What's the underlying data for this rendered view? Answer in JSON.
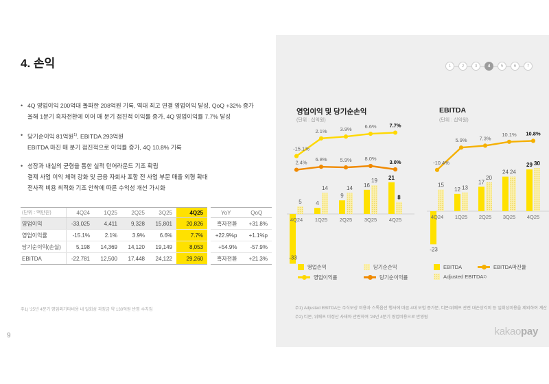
{
  "title": "4. 손익",
  "page_number": "9",
  "bullets": [
    {
      "lines": [
        {
          "text": "4Q 영업이익 200억대 돌파한 208억원 기록, 역대 최고 연결 영업이익 달성, QoQ +32% 증가"
        },
        {
          "text": "올해 1분기 흑자전환에 이어 매 분기 점진적 이익률 증가, 4Q 영업이익률 7.7% 달성"
        }
      ]
    },
    {
      "lines": [
        {
          "prefix": "당기순이익 81억원",
          "sup": "1)",
          "suffix": ", EBITDA 293억원"
        },
        {
          "text": "EBITDA 마진 매 분기 점진적으로 이익률 증가, 4Q 10.8% 기록"
        }
      ]
    },
    {
      "lines": [
        {
          "text": "성장과 내실의 균형을 통한 실적 턴어라운드 기조 확립"
        },
        {
          "text": "결제 사업 이익 체력 강화 및 금융 자회사 포함 전 사업 부문 매출 외형 확대"
        },
        {
          "text": "전사적 비용 최적화 기조 안착에 따른 수익성 개선 가시화"
        }
      ]
    }
  ],
  "table": {
    "unit_label": "(단위 : 백만원)",
    "columns": [
      "4Q24",
      "1Q25",
      "2Q25",
      "3Q25",
      "4Q25"
    ],
    "side_columns": [
      "YoY",
      "QoQ"
    ],
    "rows": [
      {
        "label": "영업이익",
        "values": [
          "-33,025",
          "4,411",
          "9,328",
          "15,801",
          "20,826"
        ],
        "yoy": "흑자전환",
        "qoq": "+31.8%",
        "shaded": true
      },
      {
        "label": "영업이익률",
        "values": [
          "-15.1%",
          "2.1%",
          "3.9%",
          "6.6%",
          "7.7%"
        ],
        "yoy": "+22.9%p",
        "qoq": "+1.1%p",
        "shaded": false
      },
      {
        "label": "당기순이익(손실)",
        "values": [
          "5,198",
          "14,369",
          "14,120",
          "19,149",
          "8,053"
        ],
        "yoy": "+54.9%",
        "qoq": "-57.9%",
        "shaded": false
      },
      {
        "label": "EBITDA",
        "values": [
          "-22,781",
          "12,500",
          "17,448",
          "24,122",
          "29,260"
        ],
        "yoy": "흑자전환",
        "qoq": "+21.3%",
        "shaded": false
      }
    ]
  },
  "footnote_left": "주1) '25년 4분기 영업외기타비용 내 일회성 과징금 약 130억원 반영 수치임",
  "pagination": {
    "pages": [
      "1",
      "2",
      "3",
      "4",
      "5",
      "6",
      "7"
    ],
    "active_index": 3
  },
  "chart_data": [
    {
      "type": "bar+line",
      "title": "영업이익 및 당기순손익",
      "unit": "(단위 : 십억원)",
      "categories": [
        "4Q24",
        "1Q25",
        "2Q25",
        "3Q25",
        "4Q25"
      ],
      "bar_series": [
        {
          "name": "영업손익",
          "style": "solid",
          "values": [
            -33,
            4,
            9,
            16,
            21
          ]
        },
        {
          "name": "당기순손익",
          "style": "light",
          "values": [
            5,
            14,
            14,
            19,
            8
          ]
        }
      ],
      "line_series": [
        {
          "name": "영업이익률",
          "color": "#FFD800",
          "values": [
            -15.1,
            2.1,
            3.9,
            6.6,
            7.7
          ],
          "labels": [
            "-15.1%",
            "2.1%",
            "3.9%",
            "6.6%",
            "7.7%"
          ]
        },
        {
          "name": "당기순이익률",
          "color": "#F08A00",
          "values": [
            2.4,
            6.8,
            5.9,
            8.0,
            3.0
          ],
          "labels": [
            "2.4%",
            "6.8%",
            "5.9%",
            "8.0%",
            "3.0%"
          ]
        }
      ],
      "legend": [
        [
          {
            "icon": "square-solid",
            "label": "영업손익"
          },
          {
            "icon": "square-light",
            "label": "당기순손익"
          }
        ],
        [
          {
            "icon": "line",
            "color": "#FFD800",
            "label": "영업이익률"
          },
          {
            "icon": "line",
            "color": "#F08A00",
            "label": "당기순이익률"
          }
        ]
      ]
    },
    {
      "type": "bar+line",
      "title": "EBITDA",
      "unit": "(단위 : 십억원)",
      "categories": [
        "4Q24",
        "1Q25",
        "2Q25",
        "3Q25",
        "4Q25"
      ],
      "bar_series": [
        {
          "name": "EBITDA",
          "style": "solid",
          "values": [
            -23,
            12,
            17,
            24,
            29
          ]
        },
        {
          "name": "Adjusted EBITDA",
          "style": "light",
          "values": [
            15,
            13,
            20,
            24,
            30
          ]
        }
      ],
      "line_series": [
        {
          "name": "EBITDA마진율",
          "color": "#F5B000",
          "values": [
            -10.4,
            5.9,
            7.3,
            10.1,
            10.8
          ],
          "labels": [
            "-10.4%",
            "5.9%",
            "7.3%",
            "10.1%",
            "10.8%"
          ]
        }
      ],
      "legend": [
        [
          {
            "icon": "square-solid",
            "label": "EBITDA"
          },
          {
            "icon": "line",
            "color": "#F5B000",
            "label": "EBITDA마진율"
          }
        ],
        [
          {
            "icon": "square-light",
            "label": "Adjusted EBITDA",
            "sup": "1)"
          }
        ]
      ]
    }
  ],
  "panel_footnotes": [
    "주1) Adjusted EBITDA는 주식보상 비용과 스톡옵션 행사에 따른 4대 보험 증가분, 티몬/위메프 관련 대손상각비 등 일회성비용을 제외하여 계산",
    "주2) 티몬, 위메프 미정산 사태와 관련하여 '24년 4분기 영업비용으로 반영됨"
  ],
  "logo": {
    "kakao": "kakao",
    "pay": "pay"
  },
  "colors": {
    "accent_yellow": "#FFE100",
    "light_bar_base": "#FAF0B0",
    "light_bar_dot": "#EFD75E",
    "panel_bg": "#EFEFEF",
    "axis": "#D2D2D2"
  }
}
